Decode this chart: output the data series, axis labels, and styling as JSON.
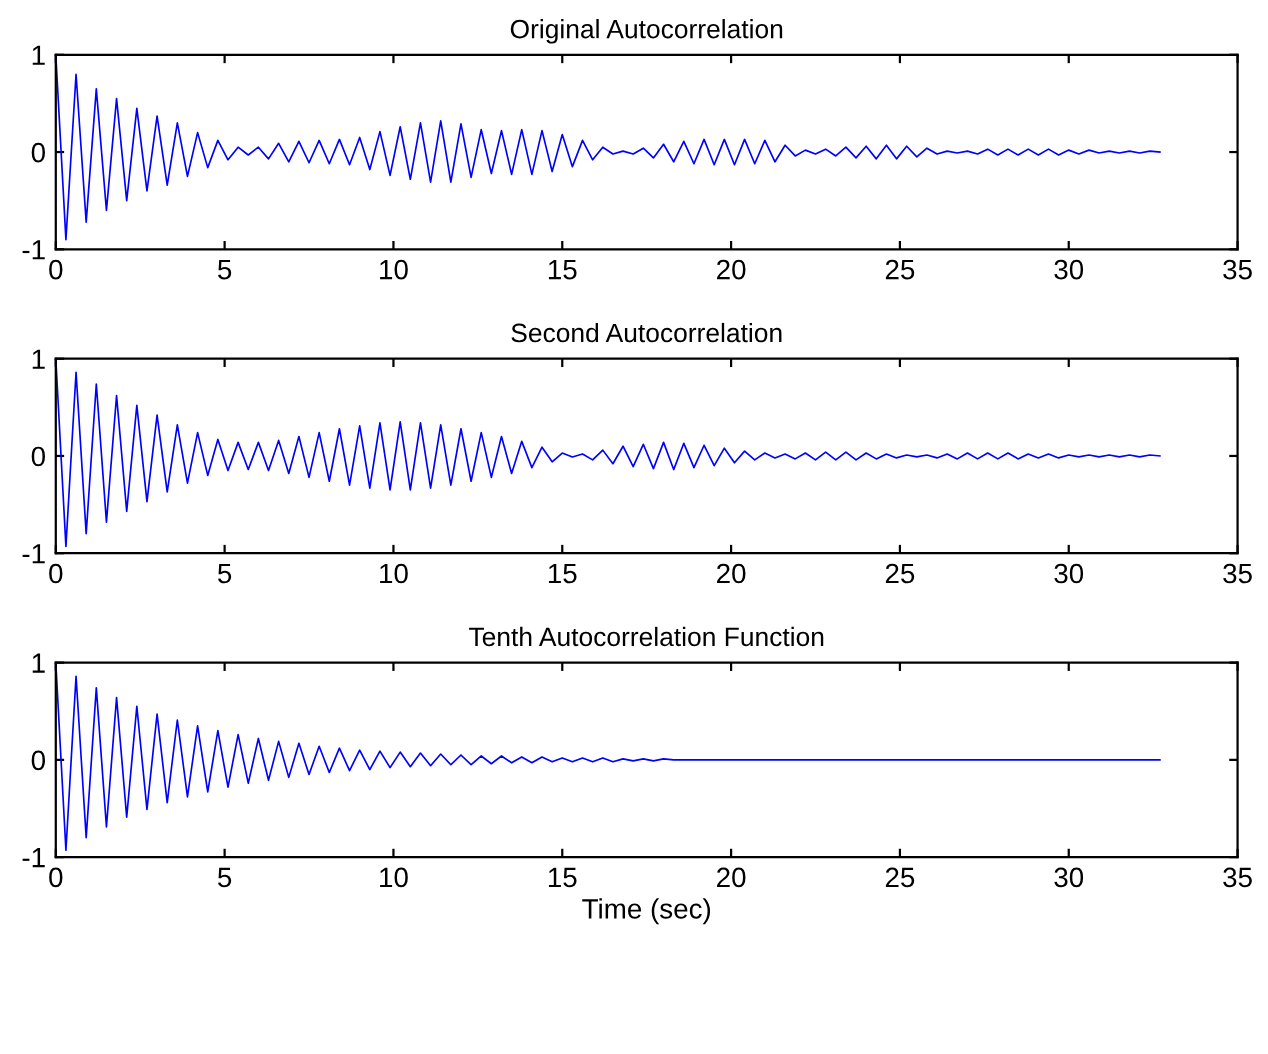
{
  "chart_data": [
    {
      "type": "line",
      "title": "Original Autocorrelation",
      "color": "#0000ff",
      "xlim": [
        0,
        35
      ],
      "ylim": [
        -1,
        1
      ],
      "xticks": [
        0,
        5,
        10,
        15,
        20,
        25,
        30,
        35
      ],
      "yticks": [
        -1,
        0,
        1
      ],
      "grid": false,
      "legend": false,
      "x": [
        0,
        0.3,
        0.6,
        0.9,
        1.2,
        1.5,
        1.8,
        2.1,
        2.4,
        2.7,
        3.0,
        3.3,
        3.6,
        3.9,
        4.2,
        4.5,
        4.8,
        5.1,
        5.4,
        5.7,
        6.0,
        6.3,
        6.6,
        6.9,
        7.2,
        7.5,
        7.8,
        8.1,
        8.4,
        8.7,
        9.0,
        9.3,
        9.6,
        9.9,
        10.2,
        10.5,
        10.8,
        11.1,
        11.4,
        11.7,
        12.0,
        12.3,
        12.6,
        12.9,
        13.2,
        13.5,
        13.8,
        14.1,
        14.4,
        14.7,
        15.0,
        15.3,
        15.6,
        15.9,
        16.2,
        16.5,
        16.8,
        17.1,
        17.4,
        17.7,
        18.0,
        18.3,
        18.6,
        18.9,
        19.2,
        19.5,
        19.8,
        20.1,
        20.4,
        20.7,
        21.0,
        21.3,
        21.6,
        21.9,
        22.2,
        22.5,
        22.8,
        23.1,
        23.4,
        23.7,
        24.0,
        24.3,
        24.6,
        24.9,
        25.2,
        25.5,
        25.8,
        26.1,
        26.4,
        26.7,
        27.0,
        27.3,
        27.6,
        27.9,
        28.2,
        28.5,
        28.8,
        29.1,
        29.4,
        29.7,
        30.0,
        30.3,
        30.6,
        30.9,
        31.2,
        31.5,
        31.8,
        32.1,
        32.4,
        32.7
      ],
      "values": [
        1,
        -0.9,
        0.8,
        -0.72,
        0.65,
        -0.6,
        0.55,
        -0.5,
        0.45,
        -0.4,
        0.37,
        -0.34,
        0.3,
        -0.25,
        0.2,
        -0.16,
        0.12,
        -0.08,
        0.05,
        -0.03,
        0.05,
        -0.07,
        0.09,
        -0.1,
        0.11,
        -0.11,
        0.12,
        -0.12,
        0.13,
        -0.13,
        0.15,
        -0.18,
        0.21,
        -0.24,
        0.26,
        -0.28,
        0.3,
        -0.31,
        0.32,
        -0.31,
        0.29,
        -0.26,
        0.23,
        -0.22,
        0.22,
        -0.23,
        0.23,
        -0.23,
        0.22,
        -0.2,
        0.18,
        -0.15,
        0.12,
        -0.08,
        0.05,
        -0.02,
        0.01,
        -0.02,
        0.04,
        -0.06,
        0.08,
        -0.1,
        0.11,
        -0.12,
        0.13,
        -0.13,
        0.13,
        -0.13,
        0.13,
        -0.12,
        0.12,
        -0.1,
        0.07,
        -0.04,
        0.02,
        -0.02,
        0.03,
        -0.04,
        0.05,
        -0.06,
        0.06,
        -0.07,
        0.07,
        -0.07,
        0.06,
        -0.05,
        0.04,
        -0.02,
        0.01,
        -0.01,
        0.01,
        -0.02,
        0.03,
        -0.03,
        0.03,
        -0.03,
        0.03,
        -0.03,
        0.03,
        -0.03,
        0.02,
        -0.02,
        0.02,
        -0.01,
        0.01,
        -0.01,
        0.01,
        -0.01,
        0.01,
        0
      ]
    },
    {
      "type": "line",
      "title": "Second Autocorrelation",
      "color": "#0000ff",
      "xlim": [
        0,
        35
      ],
      "ylim": [
        -1,
        1
      ],
      "xticks": [
        0,
        5,
        10,
        15,
        20,
        25,
        30,
        35
      ],
      "yticks": [
        -1,
        0,
        1
      ],
      "grid": false,
      "legend": false,
      "x": [
        0,
        0.3,
        0.6,
        0.9,
        1.2,
        1.5,
        1.8,
        2.1,
        2.4,
        2.7,
        3.0,
        3.3,
        3.6,
        3.9,
        4.2,
        4.5,
        4.8,
        5.1,
        5.4,
        5.7,
        6.0,
        6.3,
        6.6,
        6.9,
        7.2,
        7.5,
        7.8,
        8.1,
        8.4,
        8.7,
        9.0,
        9.3,
        9.6,
        9.9,
        10.2,
        10.5,
        10.8,
        11.1,
        11.4,
        11.7,
        12.0,
        12.3,
        12.6,
        12.9,
        13.2,
        13.5,
        13.8,
        14.1,
        14.4,
        14.7,
        15.0,
        15.3,
        15.6,
        15.9,
        16.2,
        16.5,
        16.8,
        17.1,
        17.4,
        17.7,
        18.0,
        18.3,
        18.6,
        18.9,
        19.2,
        19.5,
        19.8,
        20.1,
        20.4,
        20.7,
        21.0,
        21.3,
        21.6,
        21.9,
        22.2,
        22.5,
        22.8,
        23.1,
        23.4,
        23.7,
        24.0,
        24.3,
        24.6,
        24.9,
        25.2,
        25.5,
        25.8,
        26.1,
        26.4,
        26.7,
        27.0,
        27.3,
        27.6,
        27.9,
        28.2,
        28.5,
        28.8,
        29.1,
        29.4,
        29.7,
        30.0,
        30.3,
        30.6,
        30.9,
        31.2,
        31.5,
        31.8,
        32.1,
        32.4,
        32.7
      ],
      "values": [
        1,
        -0.93,
        0.86,
        -0.8,
        0.74,
        -0.68,
        0.62,
        -0.57,
        0.52,
        -0.47,
        0.42,
        -0.37,
        0.32,
        -0.28,
        0.24,
        -0.2,
        0.17,
        -0.15,
        0.14,
        -0.14,
        0.14,
        -0.15,
        0.16,
        -0.18,
        0.2,
        -0.22,
        0.24,
        -0.26,
        0.28,
        -0.3,
        0.31,
        -0.33,
        0.34,
        -0.35,
        0.35,
        -0.35,
        0.34,
        -0.33,
        0.32,
        -0.3,
        0.28,
        -0.26,
        0.24,
        -0.22,
        0.2,
        -0.18,
        0.15,
        -0.12,
        0.09,
        -0.06,
        0.03,
        -0.01,
        0.02,
        -0.04,
        0.06,
        -0.08,
        0.1,
        -0.11,
        0.12,
        -0.13,
        0.14,
        -0.14,
        0.13,
        -0.12,
        0.11,
        -0.1,
        0.08,
        -0.07,
        0.05,
        -0.04,
        0.03,
        -0.02,
        0.02,
        -0.03,
        0.03,
        -0.04,
        0.04,
        -0.04,
        0.04,
        -0.04,
        0.03,
        -0.03,
        0.02,
        -0.02,
        0.01,
        -0.01,
        0.01,
        -0.02,
        0.02,
        -0.03,
        0.03,
        -0.03,
        0.03,
        -0.03,
        0.03,
        -0.03,
        0.02,
        -0.02,
        0.02,
        -0.02,
        0.01,
        -0.01,
        0.01,
        -0.01,
        0.01,
        -0.01,
        0.01,
        -0.01,
        0.01,
        0
      ]
    },
    {
      "type": "line",
      "title": "Tenth Autocorrelation Function",
      "xlabel": "Time (sec)",
      "color": "#0000ff",
      "xlim": [
        0,
        35
      ],
      "ylim": [
        -1,
        1
      ],
      "xticks": [
        0,
        5,
        10,
        15,
        20,
        25,
        30,
        35
      ],
      "yticks": [
        -1,
        0,
        1
      ],
      "grid": false,
      "legend": false,
      "x": [
        0,
        0.3,
        0.6,
        0.9,
        1.2,
        1.5,
        1.8,
        2.1,
        2.4,
        2.7,
        3.0,
        3.3,
        3.6,
        3.9,
        4.2,
        4.5,
        4.8,
        5.1,
        5.4,
        5.7,
        6.0,
        6.3,
        6.6,
        6.9,
        7.2,
        7.5,
        7.8,
        8.1,
        8.4,
        8.7,
        9.0,
        9.3,
        9.6,
        9.9,
        10.2,
        10.5,
        10.8,
        11.1,
        11.4,
        11.7,
        12.0,
        12.3,
        12.6,
        12.9,
        13.2,
        13.5,
        13.8,
        14.1,
        14.4,
        14.7,
        15.0,
        15.3,
        15.6,
        15.9,
        16.2,
        16.5,
        16.8,
        17.1,
        17.4,
        17.7,
        18.0,
        18.3,
        18.6,
        18.9,
        19.2,
        19.5,
        19.8,
        20.1,
        20.4,
        20.7,
        21.0,
        21.3,
        21.6,
        21.9,
        22.2,
        22.5,
        22.8,
        23.1,
        23.4,
        23.7,
        24.0,
        24.3,
        24.6,
        24.9,
        25.2,
        25.5,
        25.8,
        26.1,
        26.4,
        26.7,
        27.0,
        27.3,
        27.6,
        27.9,
        28.2,
        28.5,
        28.8,
        29.1,
        29.4,
        29.7,
        30.0,
        30.3,
        30.6,
        30.9,
        31.2,
        31.5,
        31.8,
        32.1,
        32.4,
        32.7
      ],
      "values": [
        1,
        -0.93,
        0.86,
        -0.8,
        0.74,
        -0.69,
        0.64,
        -0.59,
        0.55,
        -0.51,
        0.47,
        -0.44,
        0.41,
        -0.38,
        0.35,
        -0.33,
        0.3,
        -0.28,
        0.26,
        -0.24,
        0.22,
        -0.21,
        0.19,
        -0.18,
        0.17,
        -0.15,
        0.14,
        -0.13,
        0.12,
        -0.11,
        0.1,
        -0.1,
        0.09,
        -0.08,
        0.08,
        -0.07,
        0.07,
        -0.06,
        0.06,
        -0.05,
        0.05,
        -0.05,
        0.04,
        -0.04,
        0.04,
        -0.03,
        0.03,
        -0.03,
        0.03,
        -0.02,
        0.02,
        -0.02,
        0.02,
        -0.02,
        0.02,
        -0.02,
        0.01,
        -0.01,
        0.01,
        -0.01,
        0.01,
        0,
        0,
        0,
        0,
        0,
        0,
        0,
        0,
        0,
        0,
        0,
        0,
        0,
        0,
        0,
        0,
        0,
        0,
        0,
        0,
        0,
        0,
        0,
        0,
        0,
        0,
        0,
        0,
        0,
        0,
        0,
        0,
        0,
        0,
        0,
        0,
        0,
        0,
        0,
        0,
        0,
        0,
        0,
        0,
        0,
        0,
        0,
        0,
        0
      ]
    }
  ]
}
